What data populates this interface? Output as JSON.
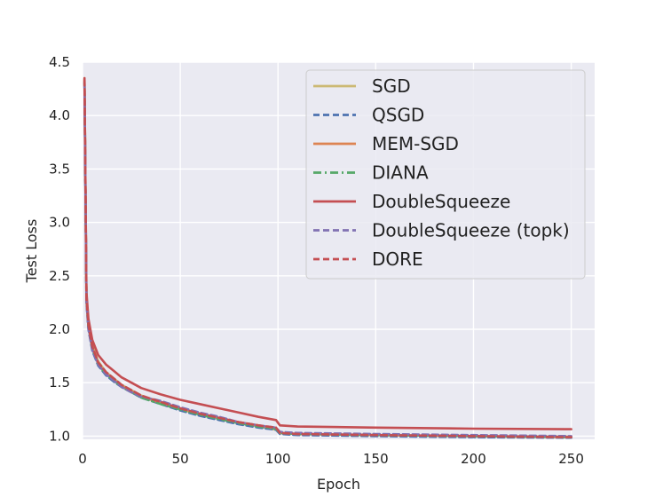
{
  "chart_data": {
    "type": "line",
    "title": "",
    "xlabel": "Epoch",
    "ylabel": "Test Loss",
    "xlim": [
      0,
      262
    ],
    "ylim": [
      0.97,
      4.5
    ],
    "xticks": [
      0,
      50,
      100,
      150,
      200,
      250
    ],
    "yticks": [
      1.0,
      1.5,
      2.0,
      2.5,
      3.0,
      3.5,
      4.0,
      4.5
    ],
    "xtick_labels": [
      "0",
      "50",
      "100",
      "150",
      "200",
      "250"
    ],
    "ytick_labels": [
      "1.0",
      "1.5",
      "2.0",
      "2.5",
      "3.0",
      "3.5",
      "4.0",
      "4.5"
    ],
    "grid": true,
    "legend_position": "upper-right",
    "series": [
      {
        "name": "SGD",
        "color": "#ccb974",
        "dash": "solid",
        "x": [
          1,
          2,
          3,
          5,
          8,
          12,
          16,
          20,
          25,
          30,
          40,
          50,
          60,
          70,
          80,
          90,
          99,
          101,
          110,
          150,
          200,
          250
        ],
        "y": [
          4.35,
          2.3,
          2.05,
          1.85,
          1.7,
          1.6,
          1.54,
          1.48,
          1.43,
          1.38,
          1.31,
          1.25,
          1.2,
          1.16,
          1.12,
          1.09,
          1.06,
          1.03,
          1.02,
          1.01,
          1.0,
          0.995
        ]
      },
      {
        "name": "QSGD",
        "color": "#4c72b0",
        "dash": "dashed",
        "x": [
          1,
          2,
          3,
          5,
          8,
          12,
          16,
          20,
          25,
          30,
          40,
          50,
          60,
          70,
          80,
          90,
          99,
          101,
          110,
          150,
          200,
          250
        ],
        "y": [
          4.32,
          2.25,
          2.0,
          1.8,
          1.66,
          1.57,
          1.51,
          1.46,
          1.41,
          1.36,
          1.3,
          1.24,
          1.19,
          1.15,
          1.11,
          1.08,
          1.06,
          1.02,
          1.01,
          1.0,
          0.99,
          0.985
        ]
      },
      {
        "name": "MEM-SGD",
        "color": "#dd8452",
        "dash": "solid",
        "x": [
          1,
          2,
          3,
          5,
          8,
          12,
          16,
          20,
          25,
          30,
          40,
          50,
          60,
          70,
          80,
          90,
          99,
          101,
          110,
          150,
          200,
          250
        ],
        "y": [
          4.33,
          2.28,
          2.03,
          1.83,
          1.68,
          1.59,
          1.53,
          1.47,
          1.42,
          1.37,
          1.31,
          1.26,
          1.21,
          1.17,
          1.13,
          1.1,
          1.07,
          1.03,
          1.02,
          1.01,
          1.0,
          0.99
        ]
      },
      {
        "name": "DIANA",
        "color": "#55a868",
        "dash": "dashdot",
        "x": [
          1,
          2,
          3,
          5,
          8,
          12,
          16,
          20,
          25,
          30,
          40,
          50,
          60,
          70,
          80,
          90,
          99,
          101,
          110,
          150,
          200,
          250
        ],
        "y": [
          4.3,
          2.27,
          2.02,
          1.82,
          1.67,
          1.58,
          1.52,
          1.46,
          1.41,
          1.36,
          1.3,
          1.25,
          1.2,
          1.16,
          1.12,
          1.09,
          1.07,
          1.03,
          1.02,
          1.01,
          1.0,
          0.99
        ]
      },
      {
        "name": "DoubleSqueeze",
        "color": "#c44e52",
        "dash": "solid",
        "x": [
          1,
          2,
          3,
          5,
          8,
          12,
          16,
          20,
          25,
          30,
          40,
          50,
          60,
          70,
          80,
          90,
          99,
          101,
          110,
          150,
          200,
          250
        ],
        "y": [
          4.35,
          2.35,
          2.1,
          1.9,
          1.76,
          1.67,
          1.61,
          1.55,
          1.5,
          1.45,
          1.39,
          1.34,
          1.3,
          1.26,
          1.22,
          1.18,
          1.15,
          1.1,
          1.09,
          1.08,
          1.07,
          1.065
        ]
      },
      {
        "name": "DoubleSqueeze (topk)",
        "color": "#8172b3",
        "dash": "dashed",
        "x": [
          1,
          2,
          3,
          5,
          8,
          12,
          16,
          20,
          25,
          30,
          40,
          50,
          60,
          70,
          80,
          90,
          99,
          101,
          110,
          150,
          200,
          250
        ],
        "y": [
          4.31,
          2.26,
          2.01,
          1.81,
          1.67,
          1.58,
          1.52,
          1.46,
          1.41,
          1.37,
          1.33,
          1.27,
          1.22,
          1.18,
          1.13,
          1.1,
          1.08,
          1.04,
          1.03,
          1.02,
          1.01,
          1.0
        ]
      },
      {
        "name": "DORE",
        "color": "#c44e52",
        "dash": "dashed",
        "x": [
          1,
          2,
          3,
          5,
          8,
          12,
          16,
          20,
          25,
          30,
          40,
          50,
          60,
          70,
          80,
          90,
          99,
          101,
          110,
          150,
          200,
          250
        ],
        "y": [
          4.34,
          2.29,
          2.04,
          1.84,
          1.69,
          1.6,
          1.54,
          1.48,
          1.43,
          1.38,
          1.32,
          1.26,
          1.21,
          1.17,
          1.13,
          1.1,
          1.08,
          1.03,
          1.02,
          1.01,
          1.0,
          0.99
        ]
      }
    ]
  }
}
